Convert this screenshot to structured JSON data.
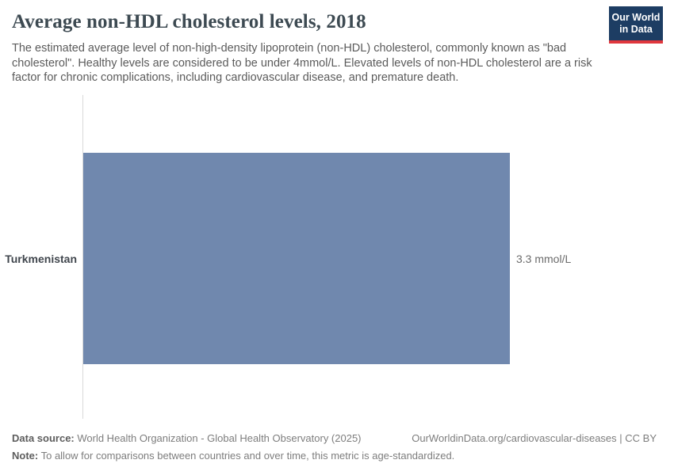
{
  "header": {
    "title": "Average non-HDL cholesterol levels, 2018",
    "subtitle": "The estimated average level of non-high-density lipoprotein (non-HDL) cholesterol, commonly known as \"bad cholesterol\". Healthy levels are considered to be under 4mmol/L. Elevated levels of non-HDL cholesterol are a risk factor for chronic complications, including cardiovascular disease, and premature death.",
    "logo": {
      "line1": "Our World",
      "line2": "in Data",
      "bg_color": "#1d3d63",
      "stripe_color": "#e0373d"
    }
  },
  "chart_data": {
    "type": "bar",
    "orientation": "horizontal",
    "title": "Average non-HDL cholesterol levels, 2018",
    "categories": [
      "Turkmenistan"
    ],
    "values": [
      3.3
    ],
    "value_labels": [
      "3.3 mmol/L"
    ],
    "unit": "mmol/L",
    "xlim": [
      0,
      3.3
    ],
    "bar_color": "#7088ae",
    "axis_line_color": "#d9d9d9",
    "grid": false,
    "legend": "none"
  },
  "footer": {
    "datasource_label": "Data source:",
    "datasource_text": " World Health Organization - Global Health Observatory (2025)",
    "note_label": "Note:",
    "note_text": " To allow for comparisons between countries and over time, this metric is age-standardized.",
    "rights": "OurWorldinData.org/cardiovascular-diseases | CC BY"
  }
}
